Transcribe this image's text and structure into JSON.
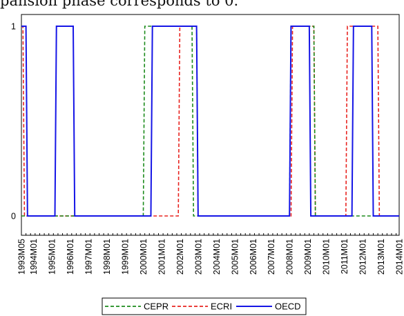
{
  "caption": "pansion phase corresponds to 0.",
  "chart_data": {
    "type": "line",
    "title": "",
    "xlabel": "",
    "ylabel": "",
    "x_start": "1993M05",
    "x_end": "2014M01",
    "ylim": [
      0,
      1
    ],
    "yticks": [
      {
        "value": 0,
        "label": "0"
      },
      {
        "value": 1,
        "label": "1"
      }
    ],
    "x_tick_labels": [
      {
        "label": "1993M05",
        "month": "1993M05"
      },
      {
        "label": "1994M01",
        "month": "1994M01"
      },
      {
        "label": "1995M01",
        "month": "1995M01"
      },
      {
        "label": "1996M01",
        "month": "1996M01"
      },
      {
        "label": "1997M01",
        "month": "1997M01"
      },
      {
        "label": "1998M01",
        "month": "1998M01"
      },
      {
        "label": "1999M01",
        "month": "1999M01"
      },
      {
        "label": "2000M01",
        "month": "2000M01"
      },
      {
        "label": "2001M01",
        "month": "2001M01"
      },
      {
        "label": "2002M01",
        "month": "2002M01"
      },
      {
        "label": "2003M01",
        "month": "2003M01"
      },
      {
        "label": "2004M01",
        "month": "2004M01"
      },
      {
        "label": "2005M01",
        "month": "2005M01"
      },
      {
        "label": "2006M01",
        "month": "2006M01"
      },
      {
        "label": "2007M01",
        "month": "2007M01"
      },
      {
        "label": "2008M01",
        "month": "2008M01"
      },
      {
        "label": "2009M01",
        "month": "2009M01"
      },
      {
        "label": "2010M01",
        "month": "2010M01"
      },
      {
        "label": "2011M01",
        "month": "2011M01"
      },
      {
        "label": "2012M01",
        "month": "2012M01"
      },
      {
        "label": "2013M01",
        "month": "2013M01"
      },
      {
        "label": "2014M01",
        "month": "2014M01"
      }
    ],
    "grid": false,
    "legend_position": "bottom",
    "series": [
      {
        "name": "CEPR",
        "color": "#1a8a1a",
        "dash": "dashed",
        "points": [
          [
            "1993M05",
            0
          ],
          [
            "2000M01",
            0
          ],
          [
            "2000M02",
            1
          ],
          [
            "2002M09",
            1
          ],
          [
            "2002M10",
            0
          ],
          [
            "2008M01",
            0
          ],
          [
            "2008M02",
            1
          ],
          [
            "2009M05",
            1
          ],
          [
            "2009M06",
            0
          ],
          [
            "2014M01",
            0
          ]
        ]
      },
      {
        "name": "ECRI",
        "color": "#e8231f",
        "dash": "dashed",
        "points": [
          [
            "1993M05",
            1
          ],
          [
            "1993M06",
            1
          ],
          [
            "1993M07",
            0
          ],
          [
            "2001M12",
            0
          ],
          [
            "2002M01",
            1
          ],
          [
            "2002M12",
            1
          ],
          [
            "2003M01",
            0
          ],
          [
            "2008M02",
            0
          ],
          [
            "2008M03",
            1
          ],
          [
            "2009M05",
            1
          ],
          [
            "2009M06",
            0
          ],
          [
            "2011M02",
            0
          ],
          [
            "2011M03",
            1
          ],
          [
            "2012M11",
            1
          ],
          [
            "2012M12",
            0
          ],
          [
            "2014M01",
            0
          ]
        ]
      },
      {
        "name": "OECD",
        "color": "#1414e6",
        "dash": "solid",
        "points": [
          [
            "1993M05",
            1
          ],
          [
            "1993M08",
            1
          ],
          [
            "1993M09",
            0
          ],
          [
            "1995M03",
            0
          ],
          [
            "1995M04",
            1
          ],
          [
            "1996M03",
            1
          ],
          [
            "1996M04",
            0
          ],
          [
            "2000M06",
            0
          ],
          [
            "2000M07",
            1
          ],
          [
            "2002M12",
            1
          ],
          [
            "2003M01",
            0
          ],
          [
            "2008M01",
            0
          ],
          [
            "2008M02",
            1
          ],
          [
            "2009M02",
            1
          ],
          [
            "2009M03",
            0
          ],
          [
            "2011M06",
            0
          ],
          [
            "2011M07",
            1
          ],
          [
            "2012M07",
            1
          ],
          [
            "2012M08",
            0
          ],
          [
            "2014M01",
            0
          ]
        ]
      }
    ]
  }
}
